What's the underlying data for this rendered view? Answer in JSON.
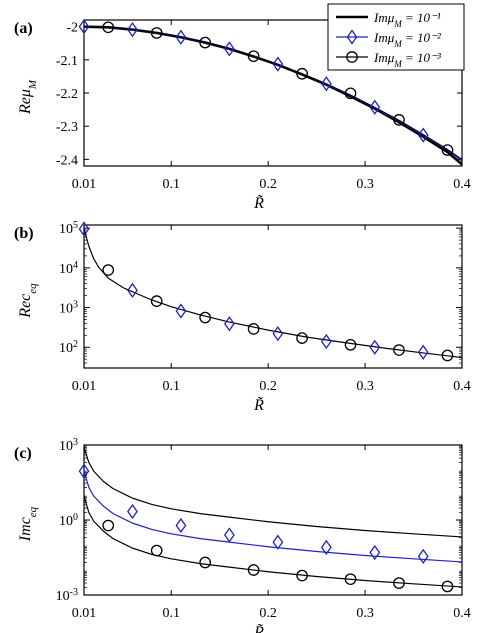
{
  "chart_data": [
    {
      "type": "line",
      "panel_label": "(a)",
      "xlabel": "R̃",
      "ylabel": "Reμ_M",
      "xlim": [
        0.01,
        0.4
      ],
      "ylim": [
        -2.42,
        -1.98
      ],
      "x_ticks": [
        "0.01",
        "0.1",
        "0.2",
        "0.3",
        "0.4"
      ],
      "y_ticks": [
        "-2",
        "-2.1",
        "-2.2",
        "-2.3",
        "-2.4"
      ],
      "legend": {
        "placement": "top-right",
        "entries": [
          {
            "label": "Imμ_M = 10⁻¹",
            "color": "#000000",
            "marker": "none"
          },
          {
            "label": "Imμ_M = 10⁻²",
            "color": "#2020c8",
            "marker": "diamond"
          },
          {
            "label": "Imμ_M = 10⁻³",
            "color": "#000000",
            "marker": "circle"
          }
        ]
      },
      "series": [
        {
          "x": [
            0.01,
            0.035,
            0.06,
            0.085,
            0.11,
            0.135,
            0.16,
            0.185,
            0.21,
            0.235,
            0.26,
            0.285,
            0.31,
            0.335,
            0.36,
            0.385,
            0.4
          ],
          "y": [
            -2.0,
            -2.002,
            -2.009,
            -2.019,
            -2.032,
            -2.048,
            -2.067,
            -2.09,
            -2.115,
            -2.144,
            -2.175,
            -2.21,
            -2.247,
            -2.288,
            -2.332,
            -2.378,
            -2.415
          ],
          "color": "#000000",
          "width": 2.6
        },
        {
          "x": [
            0.01,
            0.035,
            0.06,
            0.085,
            0.11,
            0.135,
            0.16,
            0.185,
            0.21,
            0.235,
            0.26,
            0.285,
            0.31,
            0.335,
            0.36,
            0.385,
            0.4
          ],
          "y": [
            -2.0,
            -2.002,
            -2.009,
            -2.019,
            -2.032,
            -2.048,
            -2.067,
            -2.089,
            -2.114,
            -2.142,
            -2.173,
            -2.207,
            -2.244,
            -2.284,
            -2.327,
            -2.372,
            -2.405
          ],
          "color": "#2020c8",
          "width": 1.2
        },
        {
          "x": [
            0.01,
            0.035,
            0.06,
            0.085,
            0.11,
            0.135,
            0.16,
            0.185,
            0.21,
            0.235,
            0.26,
            0.285,
            0.31,
            0.335,
            0.36,
            0.385,
            0.4
          ],
          "y": [
            -2.0,
            -2.002,
            -2.009,
            -2.019,
            -2.032,
            -2.048,
            -2.067,
            -2.089,
            -2.114,
            -2.142,
            -2.172,
            -2.206,
            -2.243,
            -2.282,
            -2.325,
            -2.37,
            -2.4
          ],
          "color": "#000000",
          "width": 1.0
        }
      ],
      "markers": [
        {
          "style": "diamond",
          "color": "#2020c8",
          "x": [
            0.01,
            0.06,
            0.11,
            0.16,
            0.21,
            0.26,
            0.31,
            0.36
          ],
          "y": [
            -2.0,
            -2.009,
            -2.032,
            -2.067,
            -2.113,
            -2.172,
            -2.243,
            -2.327
          ]
        },
        {
          "style": "circle",
          "color": "#000000",
          "x": [
            0.035,
            0.085,
            0.135,
            0.185,
            0.235,
            0.285,
            0.335,
            0.385
          ],
          "y": [
            -2.002,
            -2.019,
            -2.048,
            -2.089,
            -2.142,
            -2.201,
            -2.281,
            -2.372
          ]
        }
      ]
    },
    {
      "type": "line",
      "panel_label": "(b)",
      "xlabel": "R̃",
      "ylabel": "Rec_eq",
      "y_scale": "log",
      "xlim": [
        0.01,
        0.4
      ],
      "ylim": [
        30,
        120000
      ],
      "x_ticks": [
        "0.01",
        "0.1",
        "0.2",
        "0.3",
        "0.4"
      ],
      "y_ticks": [
        {
          "exp": 5,
          "value": 100000
        },
        {
          "exp": 4,
          "value": 10000
        },
        {
          "exp": 3,
          "value": 1000
        },
        {
          "exp": 2,
          "value": 100
        }
      ],
      "series": [
        {
          "x": [
            0.01,
            0.015,
            0.02,
            0.025,
            0.035,
            0.05,
            0.06,
            0.08,
            0.1,
            0.13,
            0.16,
            0.2,
            0.24,
            0.28,
            0.32,
            0.36,
            0.4
          ],
          "y": [
            95000,
            35000,
            17000,
            10500,
            5500,
            3200,
            2500,
            1550,
            1050,
            650,
            430,
            270,
            180,
            130,
            95,
            72,
            55
          ],
          "color": "#000000",
          "width": 1.2
        }
      ],
      "markers": [
        {
          "style": "diamond",
          "color": "#2020c8",
          "x": [
            0.01,
            0.06,
            0.11,
            0.16,
            0.21,
            0.26,
            0.31,
            0.36
          ],
          "y": [
            95000,
            2700,
            820,
            390,
            220,
            140,
            100,
            75
          ]
        },
        {
          "style": "circle",
          "color": "#000000",
          "x": [
            0.035,
            0.085,
            0.135,
            0.185,
            0.235,
            0.285,
            0.335,
            0.385
          ],
          "y": [
            8800,
            1450,
            560,
            290,
            170,
            115,
            85,
            62
          ]
        }
      ]
    },
    {
      "type": "line",
      "panel_label": "(c)",
      "xlabel": "R̃",
      "ylabel": "Imc_eq",
      "y_scale": "log",
      "xlim": [
        0.01,
        0.4
      ],
      "ylim": [
        0.001,
        1000
      ],
      "x_ticks": [
        "0.01",
        "0.1",
        "0.2",
        "0.3",
        "0.4"
      ],
      "y_ticks": [
        {
          "exp": 3,
          "value": 1000
        },
        {
          "exp": 0,
          "value": 1
        },
        {
          "exp": -3,
          "value": 0.001
        }
      ],
      "series": [
        {
          "x": [
            0.01,
            0.015,
            0.02,
            0.03,
            0.04,
            0.06,
            0.08,
            0.1,
            0.13,
            0.16,
            0.2,
            0.25,
            0.3,
            0.35,
            0.4
          ],
          "y": [
            800,
            200,
            90,
            35,
            18,
            7.5,
            4.2,
            2.8,
            1.8,
            1.3,
            0.85,
            0.55,
            0.38,
            0.28,
            0.21
          ],
          "color": "#000000",
          "width": 1.2
        },
        {
          "x": [
            0.01,
            0.015,
            0.02,
            0.03,
            0.04,
            0.06,
            0.08,
            0.1,
            0.13,
            0.16,
            0.2,
            0.25,
            0.3,
            0.35,
            0.4
          ],
          "y": [
            90,
            20,
            9,
            3.6,
            1.8,
            0.75,
            0.42,
            0.28,
            0.18,
            0.13,
            0.085,
            0.055,
            0.038,
            0.028,
            0.021
          ],
          "color": "#2020c8",
          "width": 1.2
        },
        {
          "x": [
            0.01,
            0.015,
            0.02,
            0.03,
            0.04,
            0.06,
            0.08,
            0.1,
            0.13,
            0.16,
            0.2,
            0.25,
            0.3,
            0.35,
            0.4
          ],
          "y": [
            9,
            2,
            0.9,
            0.36,
            0.18,
            0.075,
            0.042,
            0.028,
            0.018,
            0.013,
            0.0085,
            0.0055,
            0.0038,
            0.0028,
            0.0021
          ],
          "color": "#000000",
          "width": 1.2
        }
      ],
      "markers": [
        {
          "style": "diamond",
          "color": "#2020c8",
          "x": [
            0.01,
            0.06,
            0.11,
            0.16,
            0.21,
            0.26,
            0.31,
            0.36
          ],
          "y": [
            90,
            2.2,
            0.6,
            0.25,
            0.13,
            0.08,
            0.05,
            0.035
          ]
        },
        {
          "style": "circle",
          "color": "#000000",
          "x": [
            0.035,
            0.085,
            0.135,
            0.185,
            0.235,
            0.285,
            0.335,
            0.385
          ],
          "y": [
            0.6,
            0.06,
            0.02,
            0.01,
            0.006,
            0.0043,
            0.003,
            0.0022
          ]
        }
      ]
    }
  ]
}
